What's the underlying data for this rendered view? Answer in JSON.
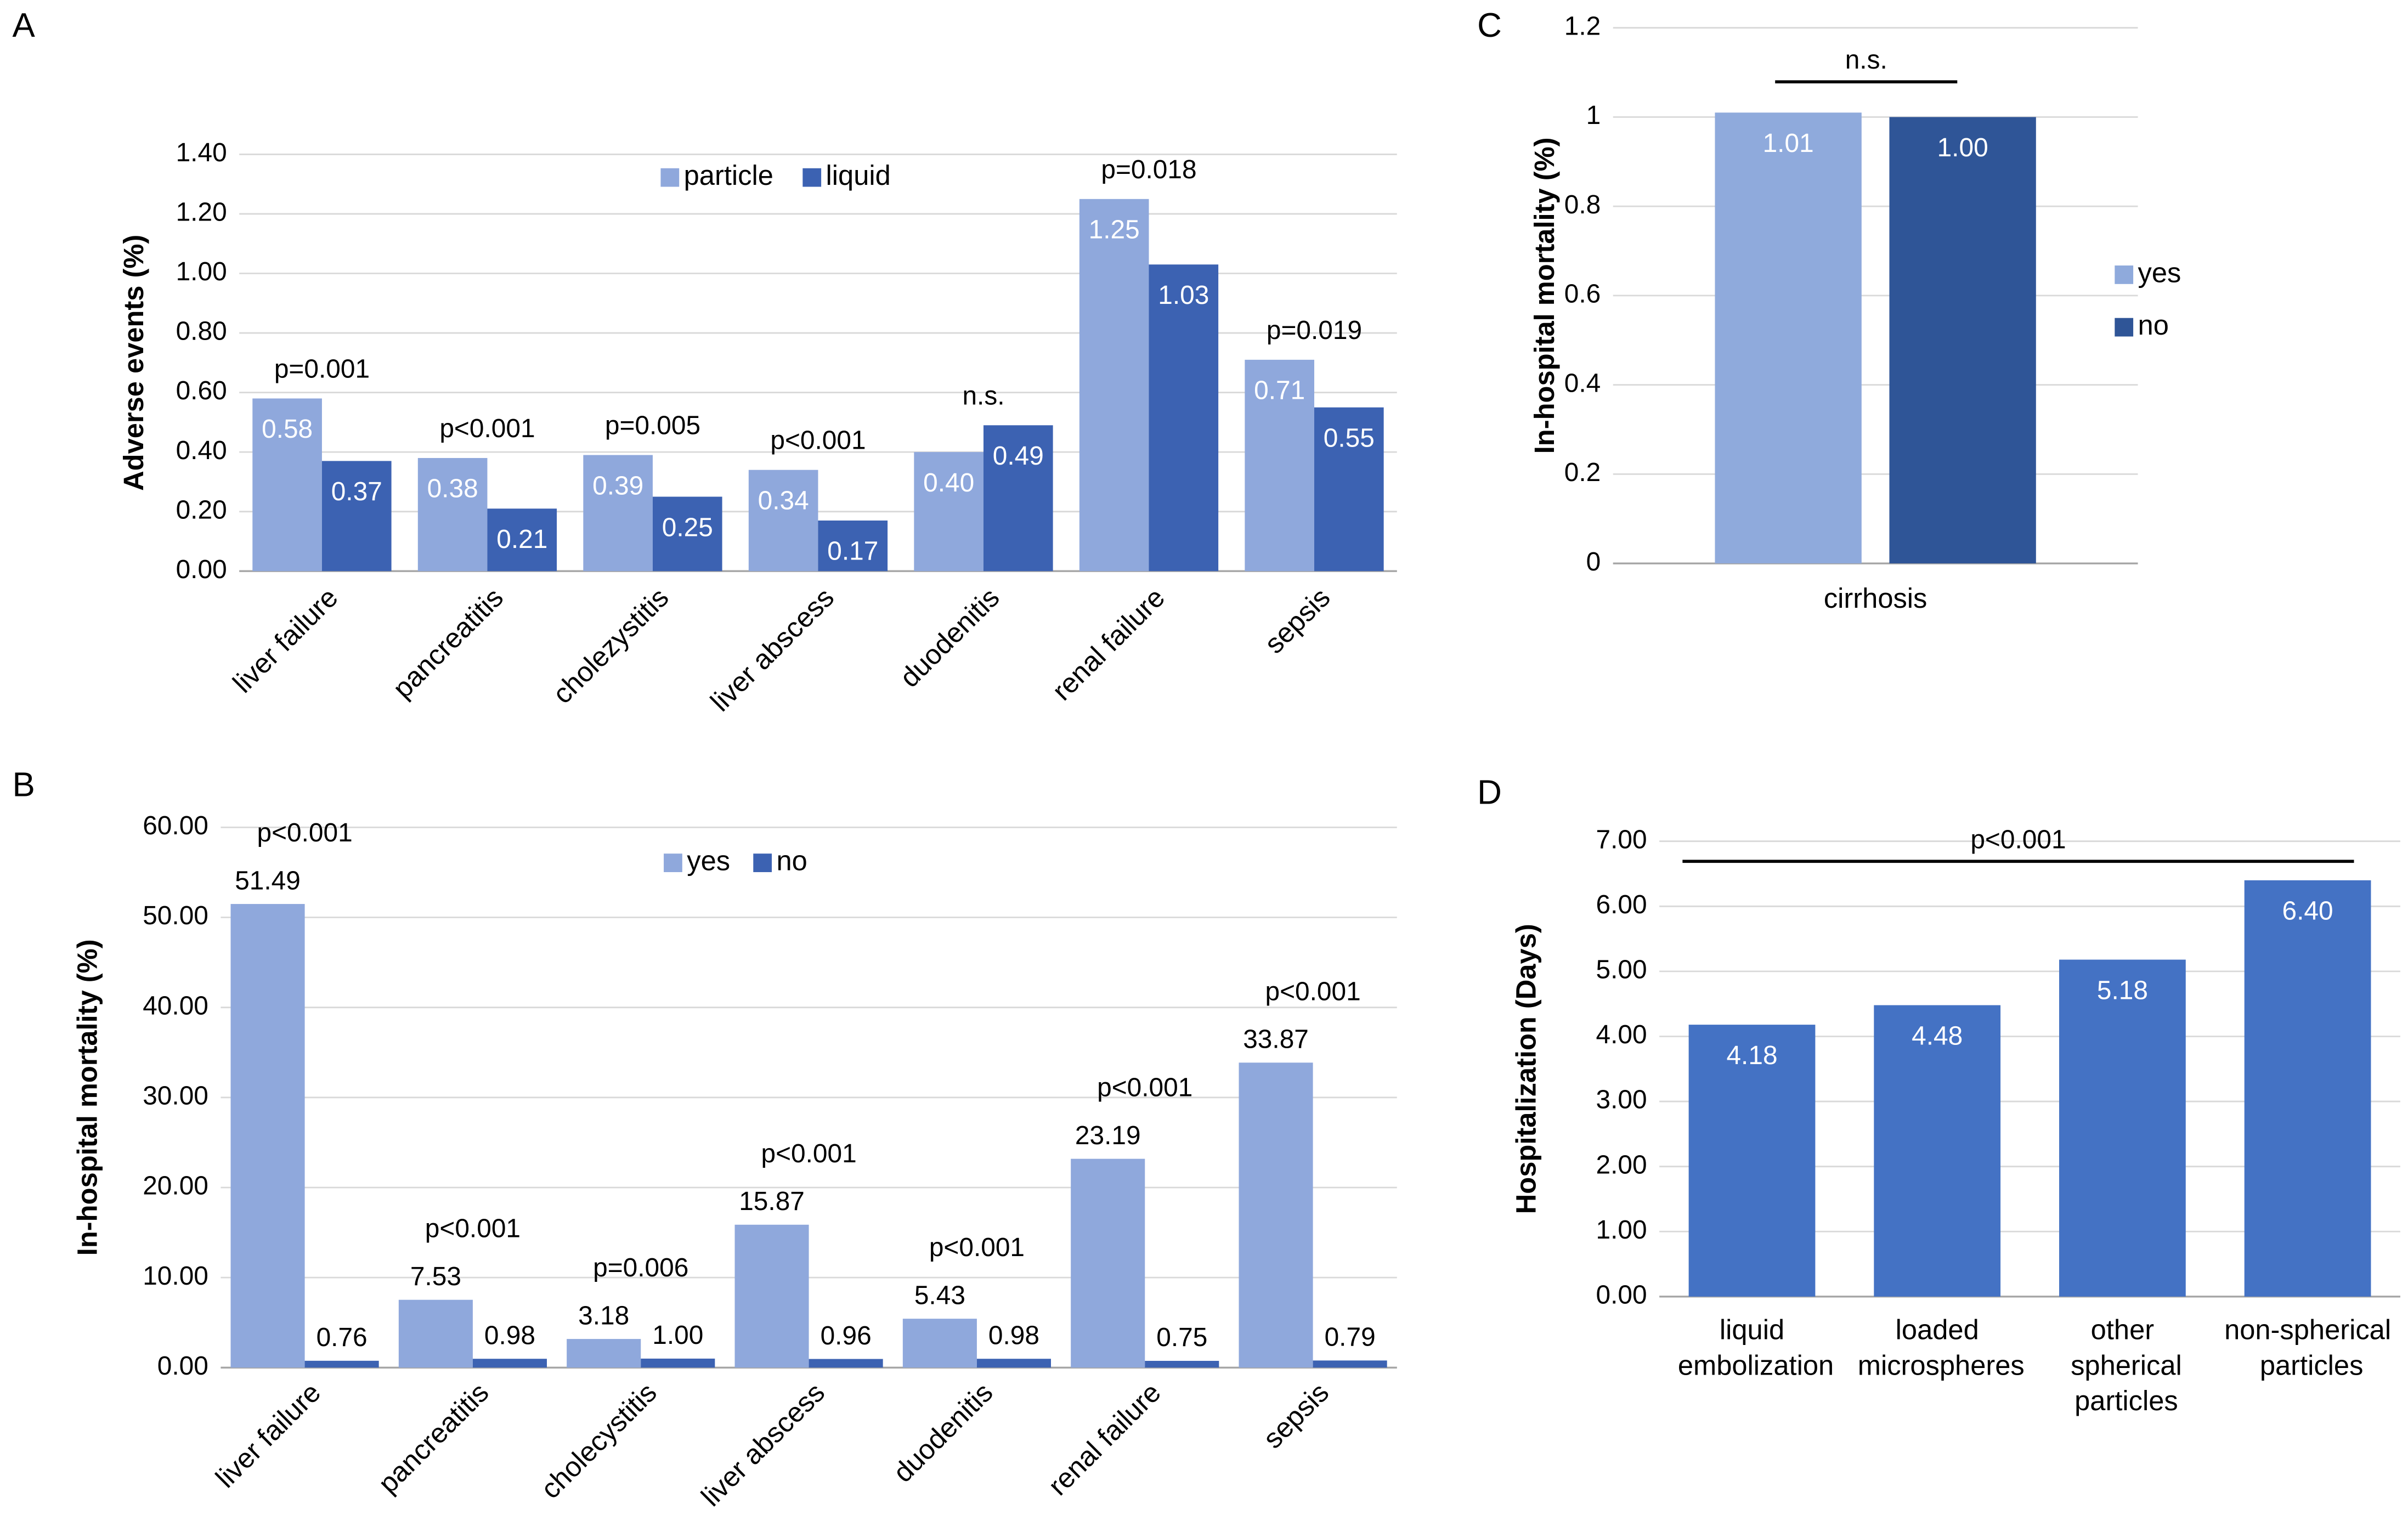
{
  "chart_data": [
    {
      "type": "bar",
      "panel": "A",
      "y_label": "Adverse events (%)",
      "categories": [
        "liver failure",
        "pancreatitis",
        "cholezystitis",
        "liver abscess",
        "duodenitis",
        "renal failure",
        "sepsis"
      ],
      "series": [
        {
          "name": "particle",
          "color": "#8fa8dc",
          "values": [
            0.58,
            0.38,
            0.39,
            0.34,
            0.4,
            1.25,
            0.71
          ],
          "value_labels": [
            "0.58",
            "0.38",
            "0.39",
            "0.34",
            "0.40",
            "1.25",
            "0.71"
          ]
        },
        {
          "name": "liquid",
          "color": "#3c62b2",
          "values": [
            0.37,
            0.21,
            0.25,
            0.17,
            0.49,
            1.03,
            0.55
          ],
          "value_labels": [
            "0.37",
            "0.21",
            "0.25",
            "0.17",
            "0.49",
            "1.03",
            "0.55"
          ]
        }
      ],
      "annotations": [
        "p=0.001",
        "p<0.001",
        "p=0.005",
        "p<0.001",
        "n.s.",
        "p=0.018",
        "p=0.019"
      ],
      "ylim": [
        0,
        1.4
      ],
      "yticks": [
        {
          "value": 0,
          "label": "0.00"
        },
        {
          "value": 0.2,
          "label": "0.20"
        },
        {
          "value": 0.4,
          "label": "0.40"
        },
        {
          "value": 0.6,
          "label": "0.60"
        },
        {
          "value": 0.8,
          "label": "0.80"
        },
        {
          "value": 1,
          "label": "1.00"
        },
        {
          "value": 1.2,
          "label": "1.20"
        },
        {
          "value": 1.4,
          "label": "1.40"
        }
      ],
      "grid": true,
      "legend": "top"
    },
    {
      "type": "bar",
      "panel": "B",
      "y_label": "In-hospital mortality (%)",
      "categories": [
        "liver failure",
        "pancreatitis",
        "cholecystitis",
        "liver abscess",
        "duodenitis",
        "renal failure",
        "sepsis"
      ],
      "series": [
        {
          "name": "yes",
          "color": "#8fa8dc",
          "values": [
            51.49,
            7.53,
            3.18,
            15.87,
            5.43,
            23.19,
            33.87
          ]
        },
        {
          "name": "no",
          "color": "#3c62b2",
          "values": [
            0.76,
            0.98,
            1.0,
            0.96,
            0.98,
            0.75,
            0.79
          ],
          "value_labels": [
            "0.76",
            "0.98",
            "1.00",
            "0.96",
            "0.98",
            "0.75",
            "0.79"
          ]
        }
      ],
      "annotations": [
        "p<0.001",
        "p<0.001",
        "p=0.006",
        "p<0.001",
        "p<0.001",
        "p<0.001",
        "p<0.001"
      ],
      "ylim": [
        0,
        60
      ],
      "yticks": [
        {
          "value": 0,
          "label": "0.00"
        },
        {
          "value": 10,
          "label": "10.00"
        },
        {
          "value": 20,
          "label": "20.00"
        },
        {
          "value": 30,
          "label": "30.00"
        },
        {
          "value": 40,
          "label": "40.00"
        },
        {
          "value": 50,
          "label": "50.00"
        },
        {
          "value": 60,
          "label": "60.00"
        }
      ],
      "grid": true,
      "legend": "top"
    },
    {
      "type": "bar",
      "panel": "C",
      "y_label": "In-hospital mortality (%)",
      "categories": [
        "cirrhosis"
      ],
      "series": [
        {
          "name": "yes",
          "color": "#8faadc",
          "values": [
            1.01
          ]
        },
        {
          "name": "no",
          "color": "#2f5597",
          "values": [
            1.0
          ],
          "value_labels": [
            "1.00"
          ]
        }
      ],
      "annotation": "n.s.",
      "ylim": [
        0,
        1.2
      ],
      "yticks": [
        0,
        0.2,
        0.4,
        0.6,
        0.8,
        1,
        1.2
      ],
      "grid": true,
      "legend": "right"
    },
    {
      "type": "bar",
      "panel": "D",
      "y_label": "Hospitalization (Days)",
      "categories": [
        "liquid embolization",
        "loaded microspheres",
        "other spherical particles",
        "non-spherical particles"
      ],
      "values": [
        4.18,
        4.48,
        5.18,
        6.4
      ],
      "value_labels": [
        "4.18",
        "4.48",
        "5.18",
        "6.40"
      ],
      "color": "#4472c4",
      "annotation": "p<0.001",
      "ylim": [
        0,
        7
      ],
      "yticks": [
        {
          "value": 0,
          "label": "0.00"
        },
        {
          "value": 1,
          "label": "1.00"
        },
        {
          "value": 2,
          "label": "2.00"
        },
        {
          "value": 3,
          "label": "3.00"
        },
        {
          "value": 4,
          "label": "4.00"
        },
        {
          "value": 5,
          "label": "5.00"
        },
        {
          "value": 6,
          "label": "6.00"
        },
        {
          "value": 7,
          "label": "7.00"
        }
      ],
      "grid": true
    }
  ]
}
